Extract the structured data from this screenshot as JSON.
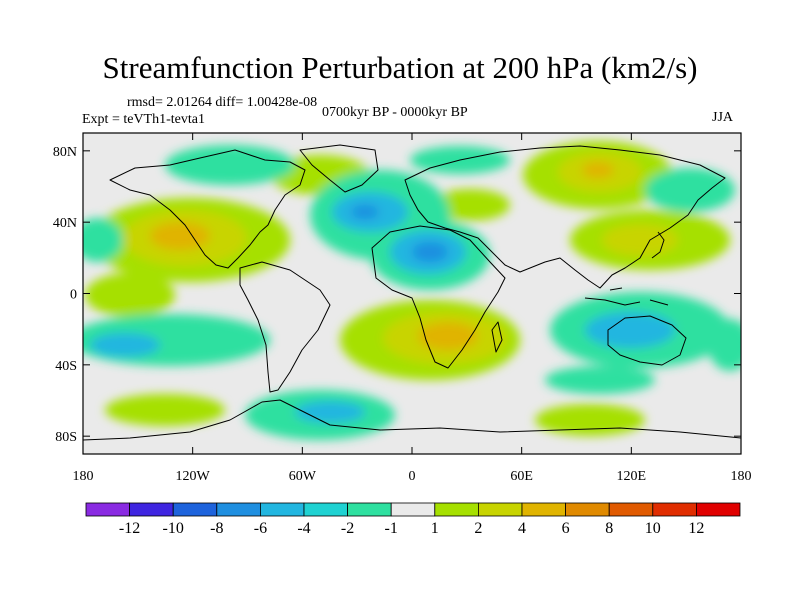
{
  "chart_data": {
    "type": "heatmap",
    "title": "Streamfunction Perturbation at 200 hPa (km2/s)",
    "stats_label": "rmsd= 2.01264 diff= 1.00428e-08",
    "experiment_label": "Expt = teVTh1-tevta1",
    "period_label": "0700kyr BP - 0000kyr BP",
    "season_label": "JJA",
    "x_ticks": [
      "180",
      "120W",
      "60W",
      "0",
      "60E",
      "120E",
      "180"
    ],
    "y_ticks": [
      "80N",
      "40N",
      "0",
      "40S",
      "80S"
    ],
    "x_range": [
      -180,
      180
    ],
    "y_range": [
      -90,
      90
    ],
    "colorbar": {
      "labels": [
        "-12",
        "-10",
        "-8",
        "-6",
        "-4",
        "-2",
        "-1",
        "1",
        "2",
        "4",
        "6",
        "8",
        "10",
        "12"
      ],
      "colors": [
        "#8a2be2",
        "#3f25e0",
        "#1e63dc",
        "#1f8fe0",
        "#22b6e0",
        "#1fd2d2",
        "#2ee0a0",
        "#eaeaea",
        "#a6e000",
        "#c8d400",
        "#e0b400",
        "#e08a00",
        "#e05a00",
        "#e02d00",
        "#e00000"
      ]
    },
    "features": [
      {
        "name": "N Pacific wave",
        "lon": -140,
        "lat": 28,
        "peak_level": 6
      },
      {
        "name": "N Atlantic trough",
        "lon": -20,
        "lat": 35,
        "peak_level": -6
      },
      {
        "name": "N Africa trough",
        "lon": 10,
        "lat": 18,
        "peak_level": -8
      },
      {
        "name": "S Atlantic high",
        "lon": 25,
        "lat": -25,
        "peak_level": 6
      },
      {
        "name": "Siberia high",
        "lon": 100,
        "lat": 70,
        "peak_level": 6
      },
      {
        "name": "Asia high",
        "lon": 130,
        "lat": 25,
        "peak_level": 4
      },
      {
        "name": "Indian Ocean trough",
        "lon": 90,
        "lat": -15,
        "peak_level": -4
      },
      {
        "name": "S Pacific trough",
        "lon": -160,
        "lat": -30,
        "peak_level": -4
      },
      {
        "name": "Antarctic ridge",
        "lon": -60,
        "lat": -65,
        "peak_level": -4
      }
    ]
  }
}
